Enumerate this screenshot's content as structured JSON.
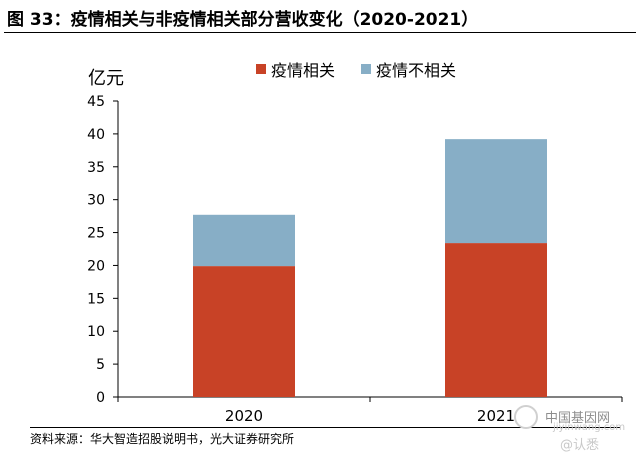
{
  "title": "图 33：疫情相关与非疫情相关部分营收变化（2020-2021）",
  "unit_label": "亿元",
  "source": "资料来源：华大智造招股说明书，光大证券研究所",
  "watermark": {
    "site": "中国基因网",
    "url": "jiyinwang.com",
    "tag": "@认悉"
  },
  "colors": {
    "related": "#c84226",
    "unrelated": "#87aec6"
  },
  "chart_data": {
    "type": "bar",
    "stacked": true,
    "categories": [
      "2020",
      "2021"
    ],
    "series": [
      {
        "name": "疫情相关",
        "values": [
          19.9,
          23.4
        ]
      },
      {
        "name": "疫情不相关",
        "values": [
          7.8,
          15.8
        ]
      }
    ],
    "ylim": [
      0,
      45
    ],
    "yticks": [
      0,
      5,
      10,
      15,
      20,
      25,
      30,
      35,
      40,
      45
    ],
    "legend_position": "top",
    "grid": false
  }
}
